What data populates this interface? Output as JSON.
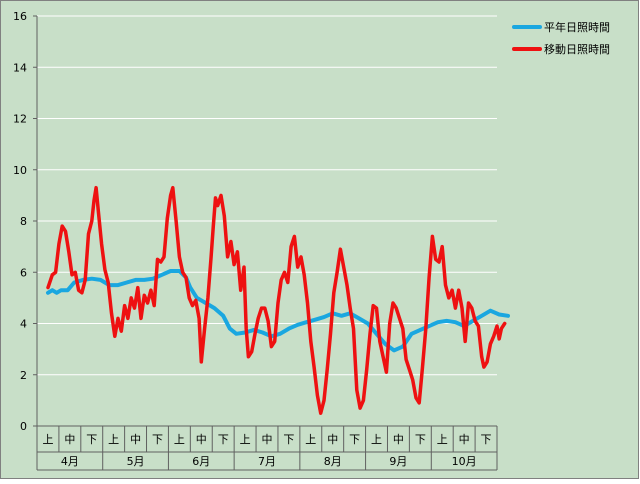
{
  "chart_data": {
    "type": "line",
    "ylim": [
      0,
      16
    ],
    "yticks": [
      0,
      2,
      4,
      6,
      8,
      10,
      12,
      14,
      16
    ],
    "grid": true,
    "legend_position": "top-right",
    "background_color": "#c8dfc8",
    "months": [
      "4月",
      "5月",
      "6月",
      "7月",
      "8月",
      "9月",
      "10月"
    ],
    "dekads": [
      "上",
      "中",
      "下"
    ],
    "series": [
      {
        "name": "平年日照時間",
        "color": "#1aa7e0",
        "points": [
          [
            0,
            5.2
          ],
          [
            0.2,
            5.3
          ],
          [
            0.4,
            5.2
          ],
          [
            0.6,
            5.3
          ],
          [
            0.9,
            5.3
          ],
          [
            1.2,
            5.6
          ],
          [
            1.6,
            5.7
          ],
          [
            2.0,
            5.75
          ],
          [
            2.4,
            5.7
          ],
          [
            2.8,
            5.5
          ],
          [
            3.2,
            5.5
          ],
          [
            3.6,
            5.6
          ],
          [
            4.0,
            5.7
          ],
          [
            4.4,
            5.7
          ],
          [
            4.8,
            5.75
          ],
          [
            5.2,
            5.9
          ],
          [
            5.6,
            6.05
          ],
          [
            6.0,
            6.05
          ],
          [
            6.3,
            5.8
          ],
          [
            6.5,
            5.4
          ],
          [
            6.8,
            5.0
          ],
          [
            7.2,
            4.8
          ],
          [
            7.6,
            4.6
          ],
          [
            8.0,
            4.3
          ],
          [
            8.3,
            3.8
          ],
          [
            8.6,
            3.6
          ],
          [
            9.0,
            3.65
          ],
          [
            9.4,
            3.75
          ],
          [
            9.8,
            3.65
          ],
          [
            10.2,
            3.5
          ],
          [
            10.6,
            3.6
          ],
          [
            11.0,
            3.8
          ],
          [
            11.4,
            3.95
          ],
          [
            11.8,
            4.05
          ],
          [
            12.2,
            4.15
          ],
          [
            12.6,
            4.25
          ],
          [
            13.0,
            4.4
          ],
          [
            13.4,
            4.3
          ],
          [
            13.8,
            4.4
          ],
          [
            14.2,
            4.2
          ],
          [
            14.6,
            4.0
          ],
          [
            15.0,
            3.6
          ],
          [
            15.4,
            3.2
          ],
          [
            15.8,
            2.95
          ],
          [
            16.2,
            3.1
          ],
          [
            16.6,
            3.6
          ],
          [
            17.0,
            3.75
          ],
          [
            17.4,
            3.9
          ],
          [
            17.8,
            4.05
          ],
          [
            18.2,
            4.1
          ],
          [
            18.6,
            4.05
          ],
          [
            19.0,
            3.9
          ],
          [
            19.4,
            4.1
          ],
          [
            19.8,
            4.3
          ],
          [
            20.2,
            4.5
          ],
          [
            20.6,
            4.35
          ],
          [
            21.0,
            4.3
          ]
        ]
      },
      {
        "name": "移動日照時間",
        "color": "#ee1111",
        "points": [
          [
            0,
            5.4
          ],
          [
            0.2,
            5.9
          ],
          [
            0.35,
            6.0
          ],
          [
            0.5,
            7.1
          ],
          [
            0.65,
            7.8
          ],
          [
            0.8,
            7.6
          ],
          [
            0.95,
            6.8
          ],
          [
            1.1,
            5.9
          ],
          [
            1.25,
            6.0
          ],
          [
            1.4,
            5.3
          ],
          [
            1.55,
            5.2
          ],
          [
            1.7,
            5.7
          ],
          [
            1.85,
            7.5
          ],
          [
            2.0,
            8.0
          ],
          [
            2.1,
            8.8
          ],
          [
            2.2,
            9.3
          ],
          [
            2.3,
            8.4
          ],
          [
            2.45,
            7.1
          ],
          [
            2.6,
            6.1
          ],
          [
            2.75,
            5.6
          ],
          [
            2.9,
            4.4
          ],
          [
            3.05,
            3.5
          ],
          [
            3.2,
            4.2
          ],
          [
            3.35,
            3.7
          ],
          [
            3.5,
            4.7
          ],
          [
            3.65,
            4.2
          ],
          [
            3.8,
            5.0
          ],
          [
            3.95,
            4.6
          ],
          [
            4.1,
            5.4
          ],
          [
            4.25,
            4.2
          ],
          [
            4.4,
            5.1
          ],
          [
            4.55,
            4.8
          ],
          [
            4.7,
            5.3
          ],
          [
            4.85,
            4.7
          ],
          [
            5.0,
            6.5
          ],
          [
            5.15,
            6.4
          ],
          [
            5.3,
            6.6
          ],
          [
            5.45,
            8.1
          ],
          [
            5.6,
            9.0
          ],
          [
            5.7,
            9.3
          ],
          [
            5.85,
            8.0
          ],
          [
            6.0,
            6.6
          ],
          [
            6.15,
            6.0
          ],
          [
            6.3,
            5.8
          ],
          [
            6.45,
            5.0
          ],
          [
            6.6,
            4.7
          ],
          [
            6.75,
            4.9
          ],
          [
            6.9,
            4.2
          ],
          [
            7.0,
            2.5
          ],
          [
            7.15,
            3.8
          ],
          [
            7.3,
            5.0
          ],
          [
            7.45,
            6.6
          ],
          [
            7.55,
            7.8
          ],
          [
            7.65,
            8.9
          ],
          [
            7.75,
            8.6
          ],
          [
            7.9,
            9.0
          ],
          [
            8.05,
            8.2
          ],
          [
            8.2,
            6.6
          ],
          [
            8.35,
            7.2
          ],
          [
            8.5,
            6.3
          ],
          [
            8.65,
            6.8
          ],
          [
            8.8,
            5.3
          ],
          [
            8.95,
            6.2
          ],
          [
            9.05,
            3.8
          ],
          [
            9.15,
            2.7
          ],
          [
            9.3,
            2.9
          ],
          [
            9.45,
            3.6
          ],
          [
            9.6,
            4.2
          ],
          [
            9.75,
            4.6
          ],
          [
            9.9,
            4.6
          ],
          [
            10.05,
            4.1
          ],
          [
            10.2,
            3.1
          ],
          [
            10.35,
            3.3
          ],
          [
            10.5,
            4.8
          ],
          [
            10.65,
            5.7
          ],
          [
            10.8,
            6.0
          ],
          [
            10.95,
            5.6
          ],
          [
            11.1,
            7.0
          ],
          [
            11.25,
            7.4
          ],
          [
            11.4,
            6.2
          ],
          [
            11.55,
            6.6
          ],
          [
            11.7,
            5.9
          ],
          [
            11.85,
            4.8
          ],
          [
            12.0,
            3.3
          ],
          [
            12.15,
            2.3
          ],
          [
            12.3,
            1.2
          ],
          [
            12.45,
            0.5
          ],
          [
            12.6,
            1.0
          ],
          [
            12.75,
            2.2
          ],
          [
            12.9,
            3.6
          ],
          [
            13.05,
            5.2
          ],
          [
            13.2,
            6.0
          ],
          [
            13.35,
            6.9
          ],
          [
            13.5,
            6.2
          ],
          [
            13.65,
            5.5
          ],
          [
            13.8,
            4.6
          ],
          [
            13.95,
            3.8
          ],
          [
            14.1,
            1.4
          ],
          [
            14.25,
            0.7
          ],
          [
            14.4,
            1.0
          ],
          [
            14.55,
            2.2
          ],
          [
            14.7,
            3.6
          ],
          [
            14.85,
            4.7
          ],
          [
            15.0,
            4.6
          ],
          [
            15.15,
            3.3
          ],
          [
            15.3,
            2.7
          ],
          [
            15.45,
            2.1
          ],
          [
            15.6,
            4.0
          ],
          [
            15.75,
            4.8
          ],
          [
            15.9,
            4.6
          ],
          [
            16.05,
            4.2
          ],
          [
            16.2,
            3.8
          ],
          [
            16.35,
            2.6
          ],
          [
            16.5,
            2.2
          ],
          [
            16.65,
            1.8
          ],
          [
            16.8,
            1.1
          ],
          [
            16.95,
            0.9
          ],
          [
            17.1,
            2.3
          ],
          [
            17.25,
            3.8
          ],
          [
            17.4,
            5.8
          ],
          [
            17.55,
            7.4
          ],
          [
            17.7,
            6.5
          ],
          [
            17.85,
            6.4
          ],
          [
            18.0,
            7.0
          ],
          [
            18.15,
            5.5
          ],
          [
            18.3,
            5.0
          ],
          [
            18.45,
            5.3
          ],
          [
            18.6,
            4.6
          ],
          [
            18.75,
            5.3
          ],
          [
            18.9,
            4.6
          ],
          [
            19.05,
            3.3
          ],
          [
            19.2,
            4.8
          ],
          [
            19.35,
            4.6
          ],
          [
            19.5,
            4.1
          ],
          [
            19.65,
            3.9
          ],
          [
            19.8,
            2.7
          ],
          [
            19.9,
            2.3
          ],
          [
            20.05,
            2.5
          ],
          [
            20.2,
            3.2
          ],
          [
            20.35,
            3.5
          ],
          [
            20.5,
            3.9
          ],
          [
            20.6,
            3.4
          ],
          [
            20.7,
            3.8
          ],
          [
            20.85,
            4.0
          ]
        ]
      }
    ]
  }
}
